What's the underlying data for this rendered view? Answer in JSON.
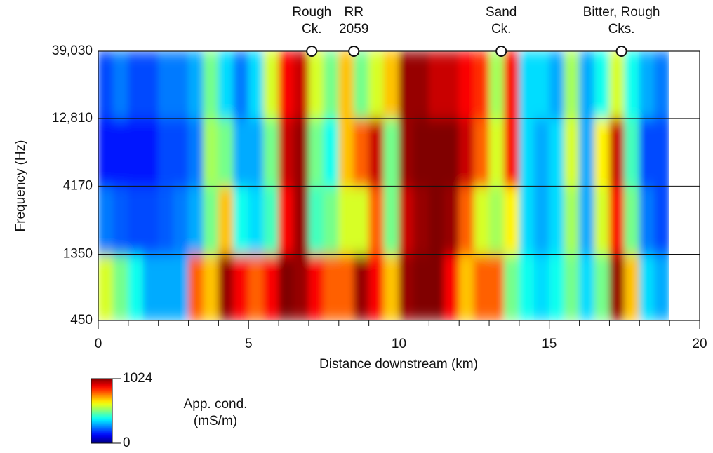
{
  "chart_data": {
    "type": "heatmap",
    "xlabel": "Distance downstream (km)",
    "ylabel": "Frequency (Hz)",
    "xlim": [
      0,
      20
    ],
    "xticks": [
      0,
      5,
      10,
      15,
      20
    ],
    "x_minor_ticks": [
      1,
      2,
      3,
      4,
      6,
      7,
      8,
      9,
      11,
      12,
      13,
      14,
      16,
      17,
      18,
      19
    ],
    "ylim": [
      450,
      39030
    ],
    "log_y": true,
    "yticks": [
      450,
      1350,
      4170,
      {
        "value": 12810,
        "label": "12,810"
      },
      {
        "value": 39030,
        "label": "39,030"
      }
    ],
    "grid": true,
    "colormap": "jet",
    "x_bins": [
      0,
      0.5,
      1,
      1.5,
      2,
      2.5,
      3,
      3.5,
      4,
      4.5,
      5,
      5.5,
      6,
      6.5,
      7,
      7.5,
      8,
      8.5,
      9,
      9.5,
      10,
      10.5,
      11,
      11.5,
      12,
      12.5,
      13,
      13.5,
      14,
      14.5,
      15,
      15.5,
      16,
      16.5,
      17,
      17.5,
      18,
      18.5,
      19
    ],
    "y_bins": [
      450,
      1350,
      4170,
      12810,
      39030
    ],
    "z": [
      [
        600,
        500,
        400,
        300,
        300,
        300,
        800,
        700,
        1000,
        900,
        800,
        900,
        1024,
        1000,
        900,
        800,
        800,
        1000,
        900,
        700,
        1000,
        1024,
        1024,
        900,
        700,
        800,
        800,
        500,
        400,
        350,
        400,
        500,
        350,
        500,
        1000,
        700,
        350,
        300
      ],
      [
        250,
        220,
        200,
        200,
        220,
        250,
        300,
        500,
        700,
        400,
        350,
        450,
        900,
        1000,
        450,
        500,
        600,
        600,
        800,
        500,
        950,
        1000,
        1024,
        1000,
        800,
        600,
        550,
        650,
        350,
        300,
        350,
        550,
        300,
        600,
        900,
        500,
        250,
        200
      ],
      [
        150,
        150,
        150,
        150,
        200,
        200,
        250,
        550,
        500,
        300,
        300,
        500,
        950,
        1000,
        500,
        400,
        700,
        800,
        950,
        500,
        1000,
        1024,
        1024,
        1024,
        950,
        800,
        600,
        900,
        350,
        300,
        350,
        600,
        300,
        650,
        950,
        450,
        200,
        200
      ],
      [
        200,
        250,
        200,
        200,
        250,
        250,
        300,
        500,
        350,
        250,
        350,
        600,
        900,
        950,
        600,
        500,
        700,
        500,
        600,
        700,
        1000,
        1000,
        950,
        950,
        900,
        850,
        550,
        900,
        350,
        350,
        300,
        550,
        300,
        400,
        600,
        400,
        300,
        250
      ]
    ],
    "colorbar": {
      "min": 0,
      "max": 1024,
      "label": [
        "App. cond.",
        "(mS/m)"
      ]
    },
    "annotations": [
      {
        "x": 7.1,
        "lines": [
          "Rough",
          "Ck."
        ]
      },
      {
        "x": 8.5,
        "lines": [
          "RR",
          "2059"
        ]
      },
      {
        "x": 13.4,
        "lines": [
          "Sand",
          "Ck."
        ]
      },
      {
        "x": 17.4,
        "lines": [
          "Bitter, Rough",
          "Cks."
        ]
      }
    ]
  }
}
